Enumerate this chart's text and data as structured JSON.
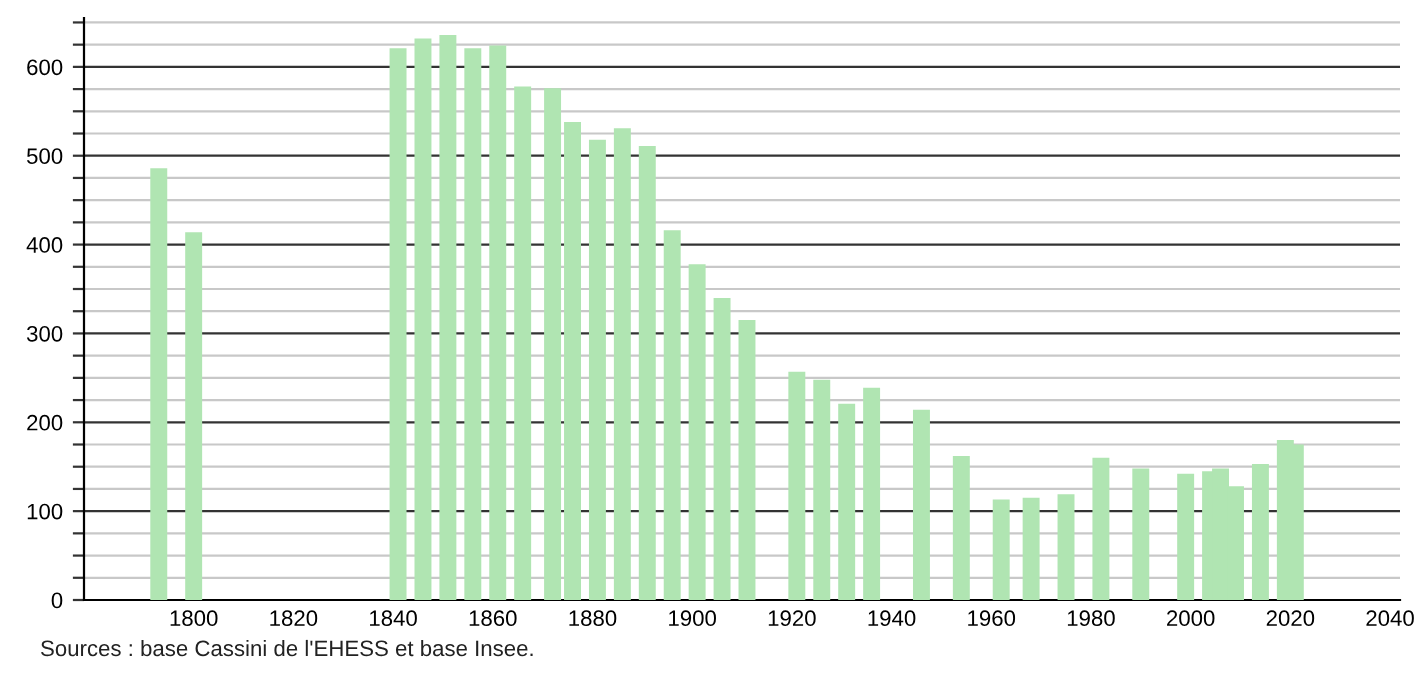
{
  "chart_data": {
    "type": "bar",
    "color": "#b0e5b2",
    "x": [
      1793,
      1800,
      1841,
      1846,
      1851,
      1856,
      1861,
      1866,
      1872,
      1876,
      1881,
      1886,
      1891,
      1896,
      1901,
      1906,
      1911,
      1921,
      1926,
      1931,
      1936,
      1946,
      1954,
      1962,
      1968,
      1975,
      1982,
      1990,
      1999,
      2004,
      2006,
      2009,
      2014,
      2019,
      2021
    ],
    "values": [
      486,
      414,
      621,
      632,
      636,
      621,
      624,
      578,
      576,
      538,
      518,
      531,
      511,
      416,
      378,
      340,
      315,
      257,
      248,
      221,
      239,
      214,
      162,
      113,
      115,
      119,
      160,
      148,
      142,
      145,
      148,
      128,
      153,
      180,
      175
    ],
    "xlim": [
      1778,
      2042
    ],
    "xticks": [
      1800,
      1820,
      1840,
      1860,
      1880,
      1900,
      1920,
      1940,
      1960,
      1980,
      2000,
      2020,
      2040
    ],
    "ylim": [
      0,
      655
    ],
    "yticks": [
      0,
      {
        "value": 25,
        "label": null
      },
      {
        "value": 50,
        "label": null
      },
      {
        "value": 75,
        "label": null
      },
      100,
      {
        "value": 125,
        "label": null
      },
      {
        "value": 150,
        "label": null
      },
      {
        "value": 175,
        "label": null
      },
      200,
      {
        "value": 225,
        "label": null
      },
      {
        "value": 250,
        "label": null
      },
      {
        "value": 275,
        "label": null
      },
      300,
      {
        "value": 325,
        "label": null
      },
      {
        "value": 350,
        "label": null
      },
      {
        "value": 375,
        "label": null
      },
      400,
      {
        "value": 425,
        "label": null
      },
      {
        "value": 450,
        "label": null
      },
      {
        "value": 475,
        "label": null
      },
      500,
      {
        "value": 525,
        "label": null
      },
      {
        "value": 550,
        "label": null
      },
      {
        "value": 575,
        "label": null
      },
      600,
      {
        "value": 625,
        "label": null
      },
      {
        "value": 650,
        "label": null
      }
    ],
    "grid": "y",
    "annotations": [
      "Sources : base Cassini de l'EHESS et base Insee."
    ]
  }
}
